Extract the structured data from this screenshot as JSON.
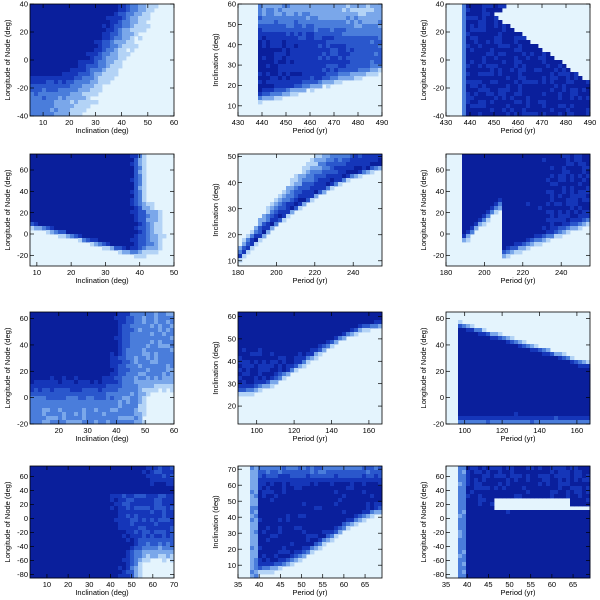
{
  "palette": [
    "#0a1f9c",
    "#1536b9",
    "#2a57cc",
    "#4a7ddb",
    "#7aa7ea",
    "#b3d3f6",
    "#e4f4fd"
  ],
  "chart_data": [
    {
      "type": "heatmap",
      "xlabel": "Inclination (deg)",
      "ylabel": "Longitude of Node (deg)",
      "xlim": [
        5,
        60
      ],
      "ylim": [
        -40,
        40
      ],
      "xticks": [
        10,
        20,
        30,
        40,
        50,
        60
      ],
      "yticks": [
        -40,
        -20,
        0,
        20,
        40
      ],
      "pattern": "incl_node_a"
    },
    {
      "type": "heatmap",
      "xlabel": "Period (yr)",
      "ylabel": "Inclination (deg)",
      "xlim": [
        430,
        490
      ],
      "ylim": [
        5,
        60
      ],
      "xticks": [
        430,
        440,
        450,
        460,
        470,
        480,
        490
      ],
      "yticks": [
        10,
        20,
        30,
        40,
        50,
        60
      ],
      "pattern": "period_incl_a"
    },
    {
      "type": "heatmap",
      "xlabel": "Period (yr)",
      "ylabel": "Longitude of Node (deg)",
      "xlim": [
        430,
        490
      ],
      "ylim": [
        -40,
        40
      ],
      "xticks": [
        430,
        440,
        450,
        460,
        470,
        480,
        490
      ],
      "yticks": [
        -40,
        -20,
        0,
        20,
        40
      ],
      "pattern": "period_node_a"
    },
    {
      "type": "heatmap",
      "xlabel": "Inclination (deg)",
      "ylabel": "Longitude of Node (deg)",
      "xlim": [
        8,
        50
      ],
      "ylim": [
        -30,
        75
      ],
      "xticks": [
        10,
        20,
        30,
        40,
        50
      ],
      "yticks": [
        -20,
        0,
        20,
        40,
        60
      ],
      "pattern": "incl_node_b"
    },
    {
      "type": "heatmap",
      "xlabel": "Period (yr)",
      "ylabel": "Inclination (deg)",
      "xlim": [
        180,
        255
      ],
      "ylim": [
        8,
        51
      ],
      "xticks": [
        180,
        200,
        220,
        240
      ],
      "yticks": [
        10,
        20,
        30,
        40,
        50
      ],
      "pattern": "period_incl_b"
    },
    {
      "type": "heatmap",
      "xlabel": "Period (yr)",
      "ylabel": "Longitude of Node (deg)",
      "xlim": [
        180,
        255
      ],
      "ylim": [
        -30,
        75
      ],
      "xticks": [
        180,
        200,
        220,
        240
      ],
      "yticks": [
        -20,
        0,
        20,
        40,
        60
      ],
      "pattern": "period_node_b"
    },
    {
      "type": "heatmap",
      "xlabel": "Inclination (deg)",
      "ylabel": "Longitude of Node (deg)",
      "xlim": [
        10,
        60
      ],
      "ylim": [
        -20,
        65
      ],
      "xticks": [
        20,
        30,
        40,
        50,
        60
      ],
      "yticks": [
        -20,
        0,
        20,
        40,
        60
      ],
      "pattern": "incl_node_c"
    },
    {
      "type": "heatmap",
      "xlabel": "Period (yr)",
      "ylabel": "Inclination (deg)",
      "xlim": [
        90,
        167
      ],
      "ylim": [
        12,
        62
      ],
      "xticks": [
        100,
        120,
        140,
        160
      ],
      "yticks": [
        20,
        30,
        40,
        50,
        60
      ],
      "pattern": "period_incl_c"
    },
    {
      "type": "heatmap",
      "xlabel": "Period (yr)",
      "ylabel": "Longitude of Node (deg)",
      "xlim": [
        90,
        167
      ],
      "ylim": [
        -20,
        65
      ],
      "xticks": [
        100,
        120,
        140,
        160
      ],
      "yticks": [
        -20,
        0,
        20,
        40,
        60
      ],
      "pattern": "period_node_c"
    },
    {
      "type": "heatmap",
      "xlabel": "Inclination (deg)",
      "ylabel": "Longitude of Node (deg)",
      "xlim": [
        2,
        70
      ],
      "ylim": [
        -85,
        75
      ],
      "xticks": [
        10,
        20,
        30,
        40,
        50,
        60,
        70
      ],
      "yticks": [
        -80,
        -60,
        -40,
        -20,
        0,
        20,
        40,
        60
      ],
      "pattern": "incl_node_d"
    },
    {
      "type": "heatmap",
      "xlabel": "Period (yr)",
      "ylabel": "Inclination (deg)",
      "xlim": [
        35,
        69
      ],
      "ylim": [
        2,
        72
      ],
      "xticks": [
        35,
        40,
        45,
        50,
        55,
        60,
        65
      ],
      "yticks": [
        10,
        20,
        30,
        40,
        50,
        60,
        70
      ],
      "pattern": "period_incl_d"
    },
    {
      "type": "heatmap",
      "xlabel": "Period (yr)",
      "ylabel": "Longitude of Node (deg)",
      "xlim": [
        35,
        69
      ],
      "ylim": [
        -85,
        75
      ],
      "xticks": [
        35,
        40,
        45,
        50,
        55,
        60,
        65
      ],
      "yticks": [
        -80,
        -60,
        -40,
        -20,
        0,
        20,
        40,
        60
      ],
      "pattern": "period_node_d"
    }
  ]
}
